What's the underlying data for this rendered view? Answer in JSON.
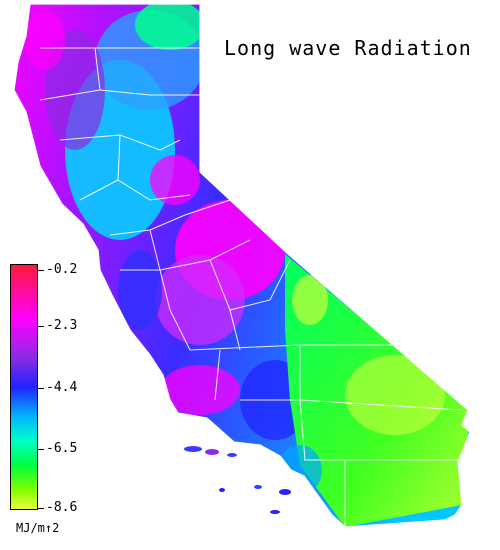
{
  "title": "Long wave Radiation",
  "colorbar": {
    "ticks": [
      "-0.2",
      "-2.3",
      "-4.4",
      "-6.5",
      "-8.6"
    ],
    "units": "MJ/m↑2"
  },
  "colors": {
    "high": "#ff1a3a",
    "magenta": "#ff00ff",
    "purple": "#8a2be2",
    "blue": "#2323ff",
    "cyan": "#00b4ff",
    "aqua": "#00ffc8",
    "green": "#00ff40",
    "low": "#e8ff3a",
    "borders": "#ffffff"
  }
}
